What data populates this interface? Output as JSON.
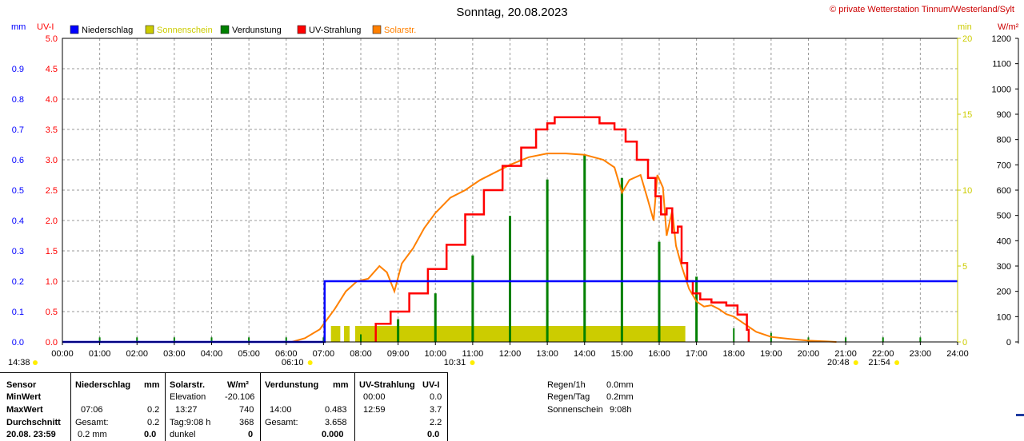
{
  "chart_data": {
    "type": "line",
    "title": "Sonntag, 20.08.2023",
    "credit": "© private Wetterstation Tinnum/Westerland/Sylt",
    "units": {
      "mm": "mm",
      "uvi": "UV-I",
      "min": "min",
      "wm2": "W/m²"
    },
    "legend": [
      {
        "name": "Niederschlag",
        "color": "#0000ff",
        "text_color": "#000000"
      },
      {
        "name": "Sonnenschein",
        "color": "#cccc00",
        "text_color": "#cccc00"
      },
      {
        "name": "Verdunstung",
        "color": "#008000",
        "text_color": "#000000"
      },
      {
        "name": "UV-Strahlung",
        "color": "#ff0000",
        "text_color": "#000000"
      },
      {
        "name": "Solarstr.",
        "color": "#ff8000",
        "text_color": "#ff8000"
      }
    ],
    "x_range": [
      0,
      24
    ],
    "x_ticks": [
      "00:00",
      "01:00",
      "02:00",
      "03:00",
      "04:00",
      "05:00",
      "06:00",
      "07:00",
      "08:00",
      "09:00",
      "10:00",
      "11:00",
      "12:00",
      "13:00",
      "14:00",
      "15:00",
      "16:00",
      "17:00",
      "18:00",
      "19:00",
      "20:00",
      "21:00",
      "22:00",
      "23:00",
      "24:00"
    ],
    "axes": {
      "mm": {
        "range": [
          0,
          1.0
        ],
        "ticks": [
          "0.0",
          "0.1",
          "0.2",
          "0.3",
          "0.4",
          "0.5",
          "0.6",
          "0.7",
          "0.8",
          "0.9"
        ],
        "color": "#0000ff"
      },
      "uvi": {
        "range": [
          0,
          5.0
        ],
        "ticks": [
          "0.0",
          "0.5",
          "1.0",
          "1.5",
          "2.0",
          "2.5",
          "3.0",
          "3.5",
          "4.0",
          "4.5",
          "5.0"
        ],
        "color": "#ff0000"
      },
      "min": {
        "range": [
          0,
          20
        ],
        "ticks": [
          "0",
          "5",
          "10",
          "15",
          "20"
        ],
        "color": "#cccc00"
      },
      "wm2": {
        "range": [
          0,
          1200
        ],
        "ticks": [
          "0",
          "100",
          "200",
          "300",
          "400",
          "500",
          "600",
          "700",
          "800",
          "900",
          "1000",
          "1100",
          "1200"
        ],
        "color": "#000000"
      }
    },
    "sun_events": [
      {
        "label": "14:38",
        "t": -0.3
      },
      {
        "label": "06:10",
        "t": 6.17
      },
      {
        "label": "10:31",
        "t": 10.52
      },
      {
        "label": "20:48",
        "t": 20.8
      },
      {
        "label": "21:54",
        "t": 21.9
      }
    ],
    "niederschlag": {
      "t": [
        0,
        7.03,
        7.03,
        24
      ],
      "mm": [
        0,
        0,
        0.2,
        0.2
      ]
    },
    "sonnenschein_blocks": [
      [
        7.2,
        7.45
      ],
      [
        7.55,
        7.7
      ],
      [
        7.85,
        16.7
      ]
    ],
    "verdunstung": {
      "t": [
        1,
        2,
        3,
        4,
        5,
        6,
        7,
        8,
        9,
        10,
        11,
        12,
        13,
        14,
        15,
        16,
        17,
        18,
        19,
        20,
        21,
        22,
        23
      ],
      "min": [
        0.3,
        0.3,
        0.3,
        0.3,
        0.3,
        0.3,
        0.3,
        0.5,
        1.5,
        3.2,
        5.7,
        8.3,
        10.7,
        12.3,
        10.8,
        6.6,
        4.3,
        0.9,
        0.6,
        0.3,
        0.3,
        0.3,
        0.3
      ]
    },
    "uv": {
      "t": [
        8.4,
        8.4,
        8.8,
        9.3,
        9.8,
        10.3,
        10.8,
        11.3,
        11.8,
        12.3,
        12.7,
        13.0,
        13.2,
        13.5,
        14.2,
        14.4,
        14.8,
        15.1,
        15.4,
        15.7,
        15.9,
        16.05,
        16.2,
        16.35,
        16.5,
        16.6,
        16.75,
        16.9,
        17.1,
        17.4,
        17.8,
        18.1,
        18.35,
        18.4
      ],
      "uvi": [
        0,
        0.3,
        0.5,
        0.8,
        1.2,
        1.6,
        2.1,
        2.5,
        2.9,
        3.2,
        3.5,
        3.6,
        3.7,
        3.7,
        3.7,
        3.6,
        3.5,
        3.3,
        3.0,
        2.7,
        2.4,
        2.1,
        2.2,
        1.8,
        1.9,
        1.3,
        1.0,
        0.8,
        0.7,
        0.65,
        0.6,
        0.45,
        0.2,
        0
      ]
    },
    "solar": {
      "t": [
        6.15,
        6.5,
        6.9,
        7.3,
        7.6,
        7.9,
        8.2,
        8.5,
        8.7,
        8.9,
        9.1,
        9.4,
        9.7,
        10.0,
        10.4,
        10.8,
        11.2,
        11.6,
        12.0,
        12.5,
        13.0,
        13.5,
        14.0,
        14.5,
        14.8,
        15.0,
        15.2,
        15.5,
        15.7,
        15.85,
        15.95,
        16.1,
        16.2,
        16.35,
        16.45,
        16.6,
        16.8,
        17.0,
        17.2,
        17.4,
        17.6,
        17.8,
        18.0,
        18.3,
        18.6,
        19.0,
        19.5,
        20.0,
        20.5,
        20.75
      ],
      "wm2": [
        0,
        15,
        50,
        130,
        200,
        240,
        250,
        300,
        275,
        200,
        310,
        370,
        450,
        510,
        570,
        600,
        640,
        670,
        700,
        730,
        745,
        745,
        740,
        720,
        690,
        590,
        640,
        660,
        560,
        480,
        660,
        610,
        420,
        520,
        380,
        300,
        210,
        160,
        140,
        145,
        130,
        110,
        100,
        70,
        40,
        20,
        12,
        5,
        2,
        0
      ]
    }
  },
  "table": {
    "sensor": {
      "header": "Sensor",
      "rows": [
        "MinWert",
        "MaxWert",
        "Durchschnitt",
        "20.08. 23:59"
      ]
    },
    "niederschlag": {
      "header": "Niederschlag",
      "unit": "mm",
      "max_time": "07:06",
      "max_val": "0.2",
      "avg_label": "Gesamt:",
      "avg_val": "0.2",
      "last_val": "0.2 mm",
      "last_b": "0.0"
    },
    "solar": {
      "header": "Solarstr.",
      "unit": "W/m²",
      "min_label": "Elevation",
      "min_val": "-20.106",
      "max_time": "13:27",
      "max_val": "740",
      "avg_label": "Tag:9:08 h",
      "avg_val": "368",
      "last_label": "dunkel",
      "last_val": "0"
    },
    "verdunstung": {
      "header": "Verdunstung",
      "unit": "mm",
      "max_time": "14:00",
      "max_val": "0.483",
      "avg_label": "Gesamt:",
      "avg_val": "3.658",
      "last_val": "0.000"
    },
    "uv": {
      "header": "UV-Strahlung",
      "unit": "UV-I",
      "min_time": "00:00",
      "min_val": "0.0",
      "max_time": "12:59",
      "max_val": "3.7",
      "avg_val": "2.2",
      "last_val": "0.0"
    },
    "summary": [
      {
        "label": "Regen/1h",
        "value": "0.0mm"
      },
      {
        "label": "Regen/Tag",
        "value": "0.2mm"
      },
      {
        "label": "Sonnenschein",
        "value": "9:08h"
      }
    ]
  }
}
